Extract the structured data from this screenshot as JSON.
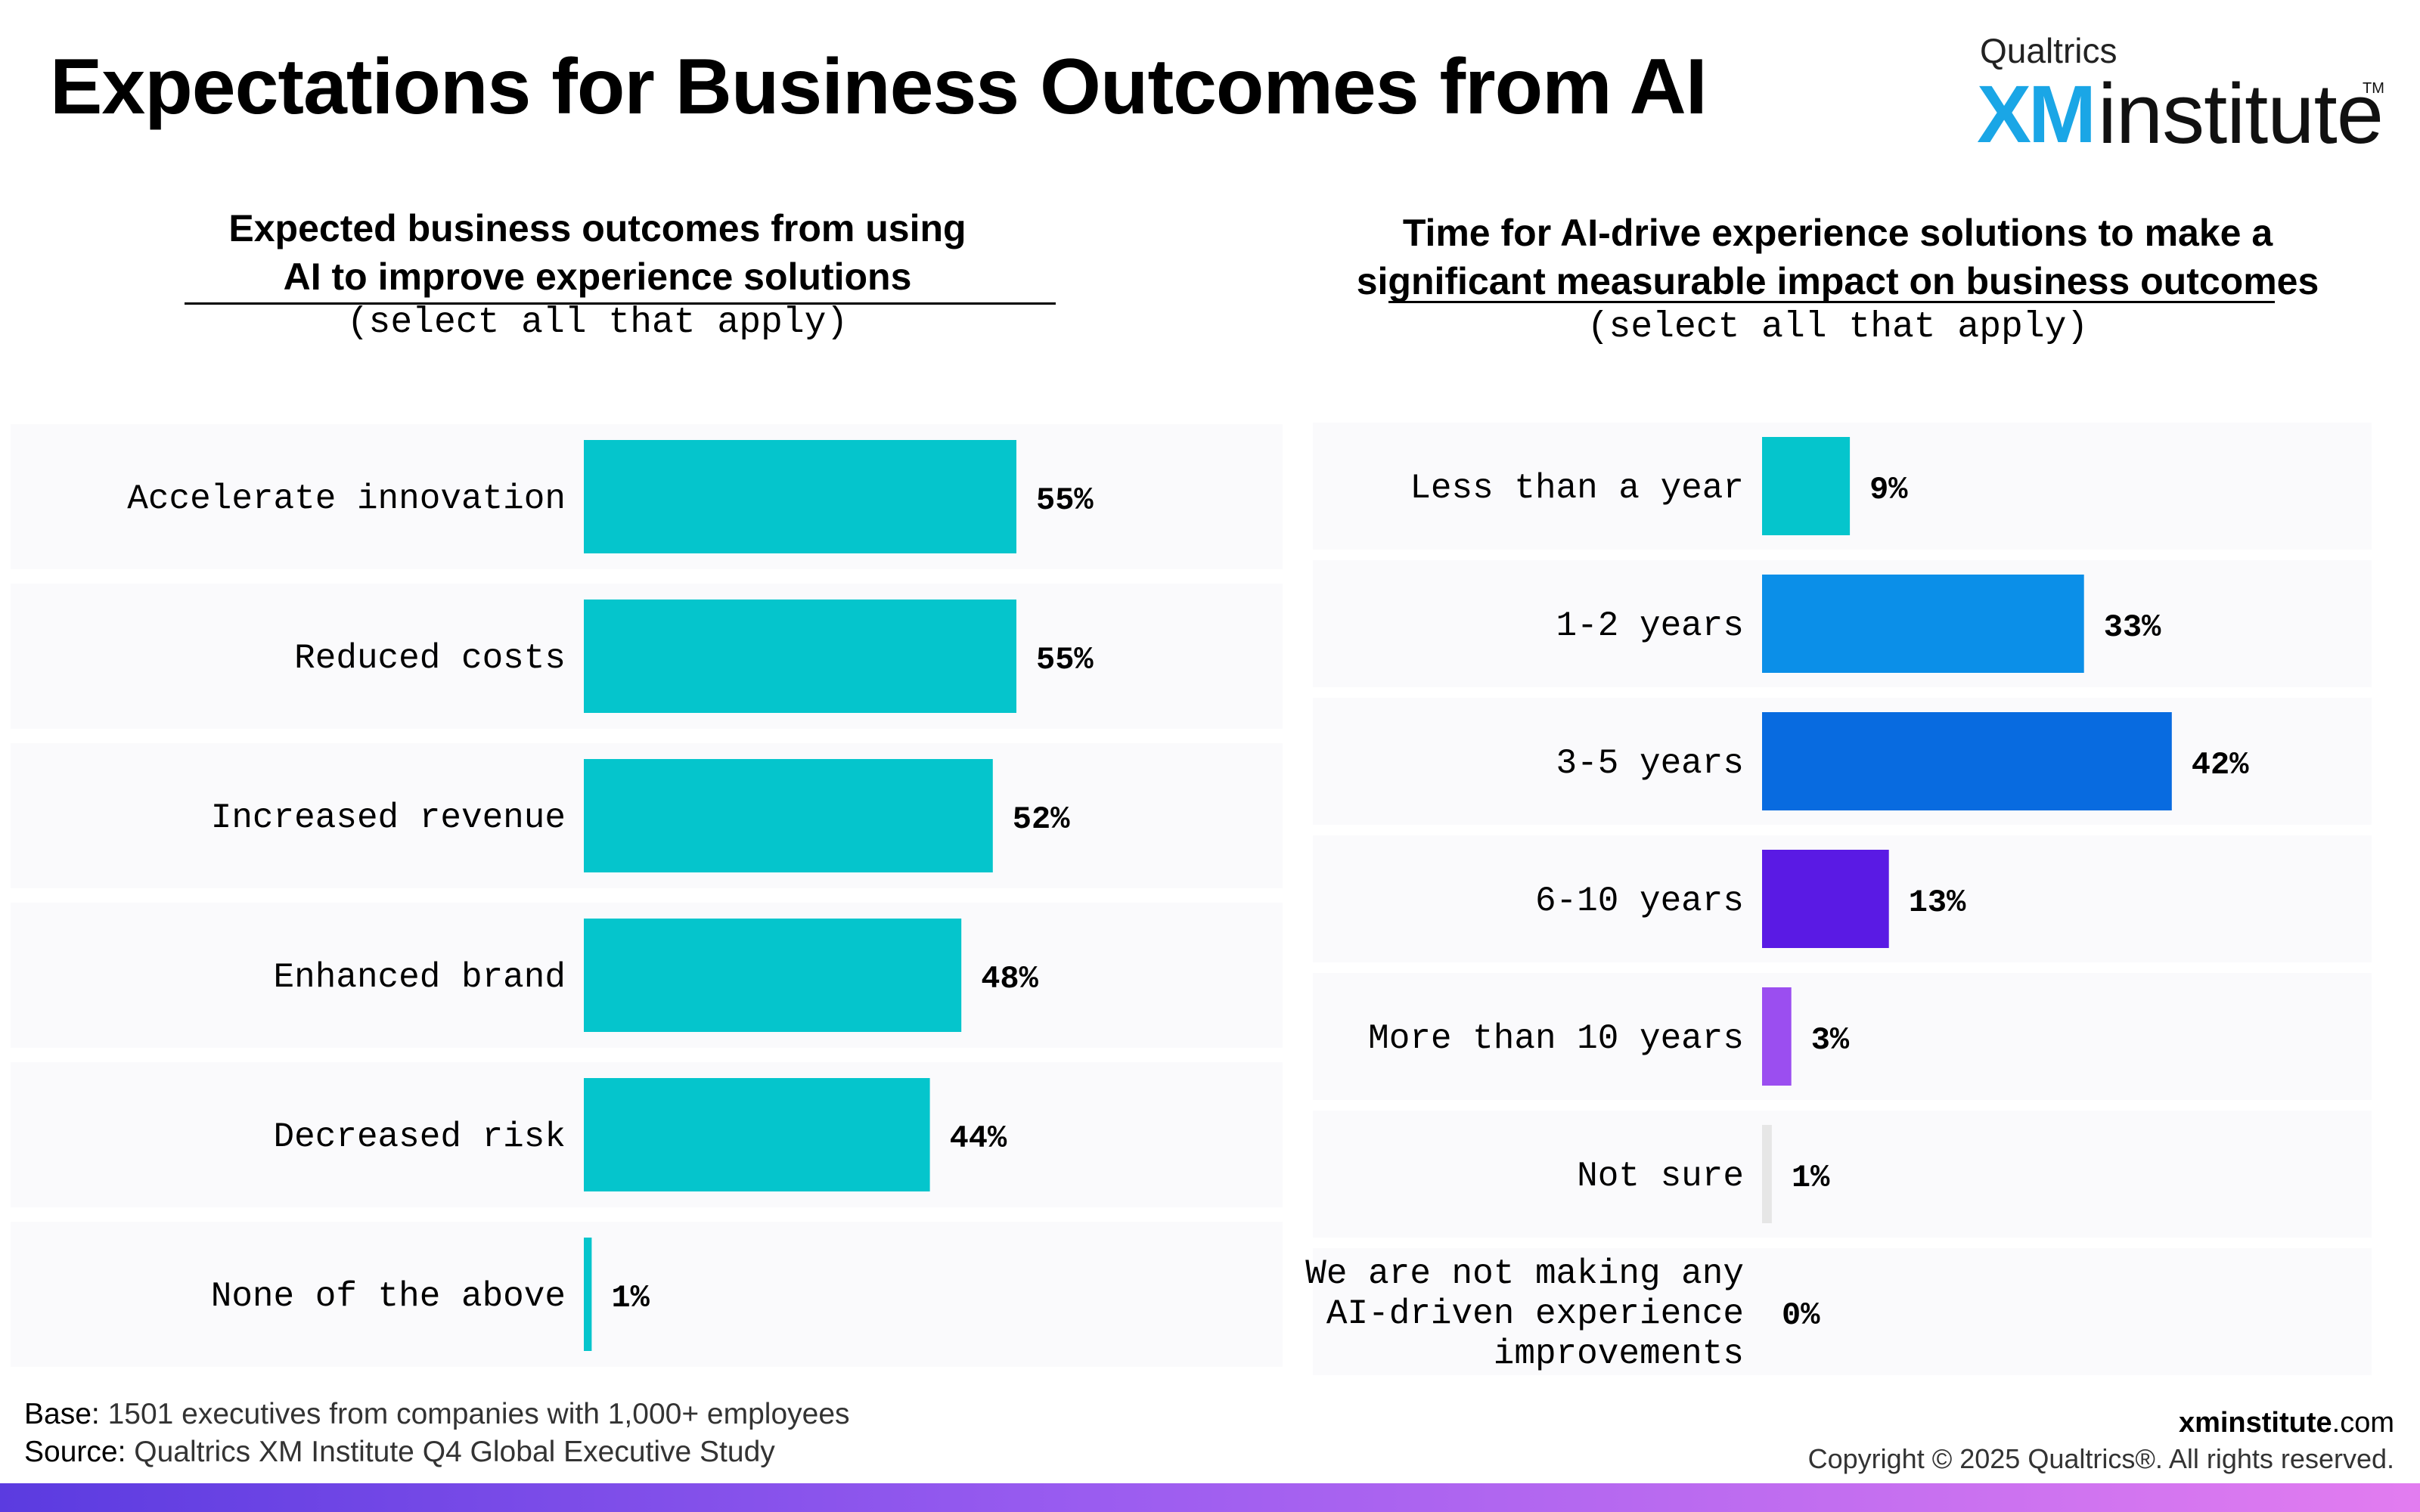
{
  "page": {
    "title": "Expectations for Business Outcomes from AI"
  },
  "logo": {
    "brand": "Qualtrics",
    "xm": "XM",
    "institute": "institute",
    "tm": "TM"
  },
  "colors": {
    "teal": "#05c5cc",
    "blue_light": "#0b8fe8",
    "blue": "#086be0",
    "purple_dark": "#5a1ae4",
    "purple": "#9b4ef0",
    "gray": "#e6e6e6"
  },
  "chart_data": [
    {
      "type": "bar",
      "orientation": "horizontal",
      "title_line1": "Expected business outcomes from using",
      "title_line2": "AI to improve experience solutions",
      "subtitle": "(select all that apply)",
      "categories": [
        "Accelerate innovation",
        "Reduced costs",
        "Increased revenue",
        "Enhanced brand",
        "Decreased risk",
        "None of the above"
      ],
      "values": [
        55,
        55,
        52,
        48,
        44,
        1
      ],
      "value_labels": [
        "55%",
        "55%",
        "52%",
        "48%",
        "44%",
        "1%"
      ],
      "colors": [
        "#05c5cc",
        "#05c5cc",
        "#05c5cc",
        "#05c5cc",
        "#05c5cc",
        "#05c5cc"
      ]
    },
    {
      "type": "bar",
      "orientation": "horizontal",
      "title_line1": "Time for AI-drive experience solutions to make a",
      "title_line2": "significant measurable impact on business outcomes",
      "subtitle": "(select all that apply)",
      "categories": [
        "Less than a year",
        "1-2 years",
        "3-5 years",
        "6-10 years",
        "More than 10 years",
        "Not sure",
        "We are not making any AI-driven experience improvements"
      ],
      "category_lines": [
        [
          "Less than a year"
        ],
        [
          "1-2 years"
        ],
        [
          "3-5 years"
        ],
        [
          "6-10 years"
        ],
        [
          "More than 10 years"
        ],
        [
          "Not sure"
        ],
        [
          "We are not making any",
          "AI-driven experience",
          "improvements"
        ]
      ],
      "values": [
        9,
        33,
        42,
        13,
        3,
        1,
        0
      ],
      "value_labels": [
        "9%",
        "33%",
        "42%",
        "13%",
        "3%",
        "1%",
        "0%"
      ],
      "colors": [
        "#05c5cc",
        "#0b8fe8",
        "#086be0",
        "#5a1ae4",
        "#9b4ef0",
        "#e6e6e6",
        "#e6e6e6"
      ]
    }
  ],
  "footer": {
    "base_label": "Base:",
    "base_text": "1501 executives from companies with 1,000+ employees",
    "source_label": "Source:",
    "source_text": "Qualtrics XM Institute Q4 Global Executive Study",
    "site_bold": "xminstitute",
    "site_tld": ".com",
    "copyright": "Copyright © 2025 Qualtrics®. All rights reserved."
  }
}
